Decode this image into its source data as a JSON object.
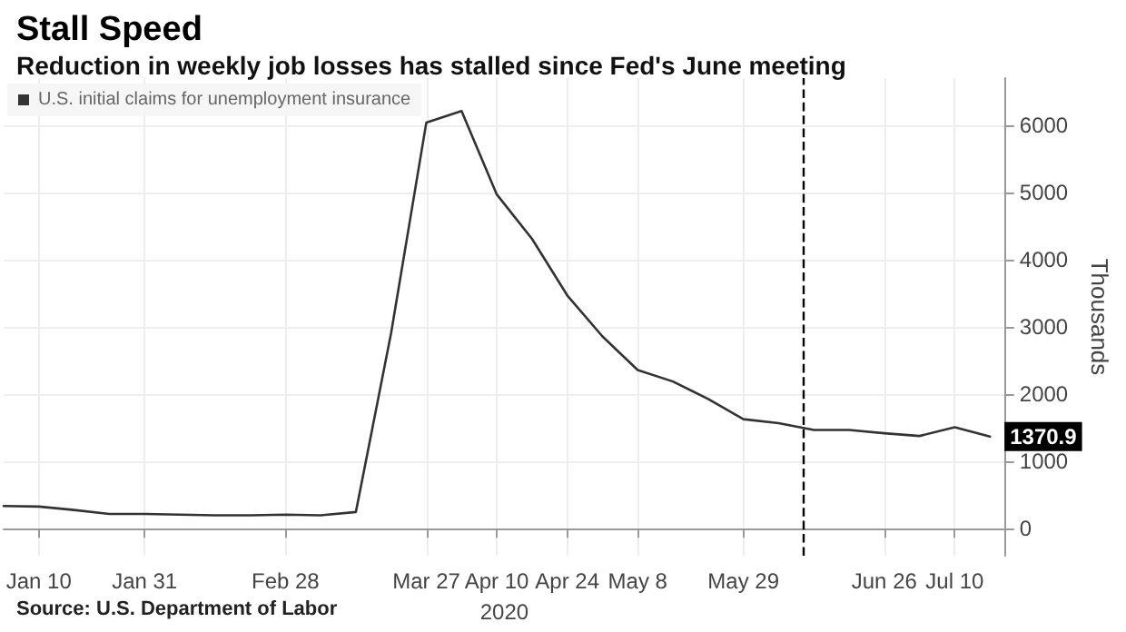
{
  "chart_data": {
    "type": "line",
    "title": "Stall Speed",
    "subtitle": "Reduction in weekly job losses has stalled since Fed's June meeting",
    "xlabel": "2020",
    "ylabel": "Thousands",
    "x": [
      "2020-01-03",
      "2020-01-10",
      "2020-01-17",
      "2020-01-24",
      "2020-01-31",
      "2020-02-07",
      "2020-02-14",
      "2020-02-21",
      "2020-02-28",
      "2020-03-06",
      "2020-03-13",
      "2020-03-20",
      "2020-03-27",
      "2020-04-03",
      "2020-04-10",
      "2020-04-17",
      "2020-04-24",
      "2020-05-01",
      "2020-05-08",
      "2020-05-15",
      "2020-05-22",
      "2020-05-29",
      "2020-06-05",
      "2020-06-12",
      "2020-06-19",
      "2020-06-26",
      "2020-07-03",
      "2020-07-10",
      "2020-07-17"
    ],
    "series": [
      {
        "name": "U.S. initial claims for unemployment insurance",
        "color": "#333333",
        "values": [
          340,
          330,
          280,
          220,
          220,
          210,
          200,
          200,
          210,
          200,
          250,
          2910,
          6040,
          6210,
          4970,
          4310,
          3470,
          2860,
          2360,
          2190,
          1930,
          1630,
          1570,
          1470,
          1470,
          1420,
          1380,
          1510,
          1370.9
        ],
        "value_labels": [
          null,
          null,
          null,
          null,
          null,
          null,
          null,
          null,
          null,
          null,
          null,
          null,
          null,
          null,
          null,
          null,
          null,
          null,
          null,
          null,
          null,
          null,
          null,
          null,
          null,
          null,
          null,
          null,
          "1370.9"
        ]
      }
    ],
    "xlim": [
      "2020-01-03",
      "2020-07-20"
    ],
    "xticks": [
      {
        "value": "2020-01-10",
        "label": "Jan 10"
      },
      {
        "value": "2020-01-31",
        "label": "Jan 31"
      },
      {
        "value": "2020-02-28",
        "label": "Feb 28"
      },
      {
        "value": "2020-03-27",
        "label": "Mar 27"
      },
      {
        "value": "2020-04-10",
        "label": "Apr 10"
      },
      {
        "value": "2020-04-24",
        "label": "Apr 24"
      },
      {
        "value": "2020-05-08",
        "label": "May 8"
      },
      {
        "value": "2020-05-29",
        "label": "May 29"
      },
      {
        "value": "2020-06-26",
        "label": "Jun 26"
      },
      {
        "value": "2020-07-10",
        "label": "Jul 10"
      }
    ],
    "ylim": [
      -400,
      6700
    ],
    "yticks": [
      0,
      1000,
      2000,
      3000,
      4000,
      5000,
      6000
    ],
    "ref_lines": [
      {
        "axis": "x",
        "value": "2020-06-10",
        "label": null,
        "color": "#000000",
        "line_style": "dashed"
      }
    ],
    "grid": true,
    "legend": "top left",
    "marker": "none",
    "line_style": "solid",
    "annotations": [
      "Source: U.S. Department of Labor"
    ]
  }
}
